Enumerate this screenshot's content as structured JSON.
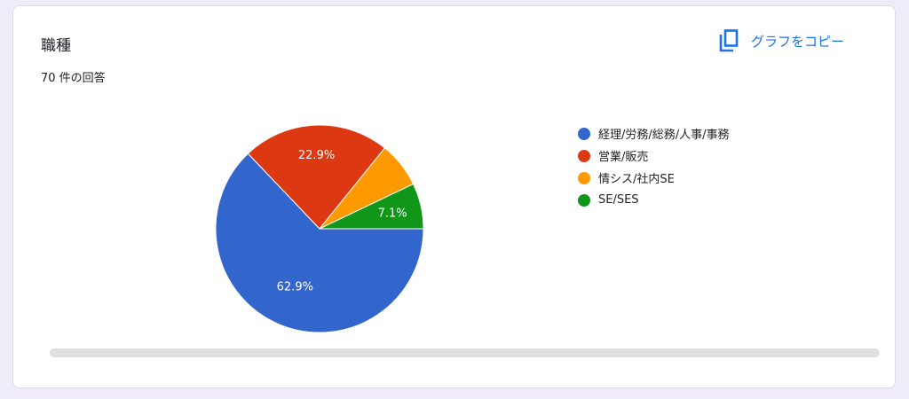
{
  "card": {
    "title": "職種",
    "response_count": "70 件の回答",
    "copy_label": "グラフをコピー",
    "copy_icon": "copy-icon"
  },
  "chart_data": {
    "type": "pie",
    "categories": [
      "経理/労務/総務/人事/事務",
      "営業/販売",
      "情シス/社内SE",
      "SE/SES"
    ],
    "values": [
      62.9,
      22.9,
      7.1,
      7.1
    ],
    "data_labels": [
      "62.9%",
      "22.9%",
      "",
      "7.1%"
    ],
    "colors": [
      "#3366cc",
      "#dc3912",
      "#ff9900",
      "#109618"
    ],
    "legend_position": "right",
    "start_angle_deg": 90
  }
}
